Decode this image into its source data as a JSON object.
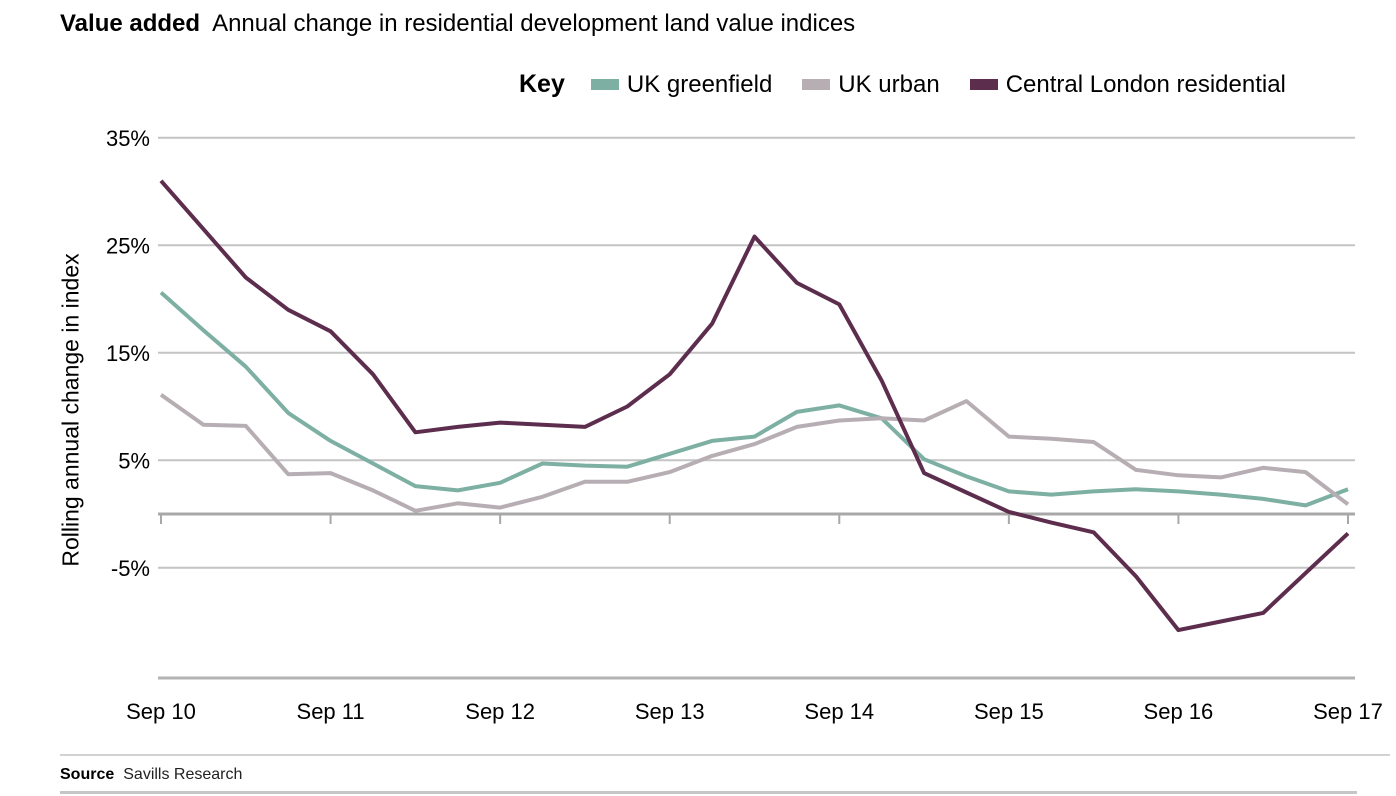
{
  "header": {
    "title_bold": "Value added",
    "title_rest": "Annual change in residential development land value indices"
  },
  "legend": {
    "key_label": "Key",
    "items": [
      {
        "label": "UK greenfield",
        "color": "#7db0a3"
      },
      {
        "label": "UK urban",
        "color": "#b7aeb4"
      },
      {
        "label": "Central London residential",
        "color": "#5d2d4e"
      }
    ]
  },
  "chart_data": {
    "type": "line",
    "title": "Value added — Annual change in residential development land value indices",
    "xlabel": "",
    "ylabel": "Rolling annual change in index",
    "grid": true,
    "legend_position": "top",
    "ylim": [
      -15.5,
      37.5
    ],
    "y_ticks": [
      {
        "label": "35%",
        "value": 35
      },
      {
        "label": "25%",
        "value": 25
      },
      {
        "label": "15%",
        "value": 15
      },
      {
        "label": "5%",
        "value": 5
      },
      {
        "label": "-5%",
        "value": -5
      }
    ],
    "x_major_labels": [
      "Sep 10",
      "Sep 11",
      "Sep 12",
      "Sep 13",
      "Sep 14",
      "Sep 15",
      "Sep 16",
      "Sep 17"
    ],
    "x_quarterly": [
      "Sep 10",
      "Dec 10",
      "Mar 11",
      "Jun 11",
      "Sep 11",
      "Dec 11",
      "Mar 12",
      "Jun 12",
      "Sep 12",
      "Dec 12",
      "Mar 13",
      "Jun 13",
      "Sep 13",
      "Dec 13",
      "Mar 14",
      "Jun 14",
      "Sep 14",
      "Dec 14",
      "Mar 15",
      "Jun 15",
      "Sep 15",
      "Dec 15",
      "Mar 16",
      "Jun 16",
      "Sep 16",
      "Dec 16",
      "Mar 17",
      "Jun 17",
      "Sep 17"
    ],
    "unit": "percent",
    "series": [
      {
        "name": "UK greenfield",
        "color": "#7db0a3",
        "values": [
          20.6,
          17.1,
          13.7,
          9.4,
          6.8,
          4.7,
          2.6,
          2.2,
          2.9,
          4.7,
          4.5,
          4.4,
          5.6,
          6.8,
          7.2,
          9.5,
          10.1,
          8.9,
          5.1,
          3.5,
          2.1,
          1.8,
          2.1,
          2.3,
          2.1,
          1.8,
          1.4,
          0.8,
          2.3
        ]
      },
      {
        "name": "UK urban",
        "color": "#b7aeb4",
        "values": [
          11.1,
          8.3,
          8.2,
          3.7,
          3.8,
          2.2,
          0.3,
          1.0,
          0.6,
          1.6,
          3.0,
          3.0,
          3.9,
          5.4,
          6.5,
          8.1,
          8.7,
          8.9,
          8.7,
          10.5,
          7.2,
          7.0,
          6.7,
          4.1,
          3.6,
          3.4,
          4.3,
          3.9,
          0.9
        ]
      },
      {
        "name": "Central London residential",
        "color": "#5d2d4e",
        "values": [
          31.0,
          26.5,
          22.0,
          19.0,
          17.0,
          13.0,
          7.6,
          8.1,
          8.5,
          8.3,
          8.1,
          10.0,
          13.0,
          17.7,
          25.8,
          21.5,
          19.5,
          12.4,
          3.8,
          2.0,
          0.2,
          -0.8,
          -1.7,
          -5.8,
          -10.8,
          -10.0,
          -9.2,
          -5.5,
          -1.8
        ]
      }
    ],
    "colors": {
      "gridline": "#c4c4c4",
      "zero_axis": "#a8a8a8",
      "bottom_border": "#b3b3b3",
      "tick_text": "#000000"
    }
  },
  "footer": {
    "source_label": "Source",
    "source_text": "Savills Research"
  }
}
